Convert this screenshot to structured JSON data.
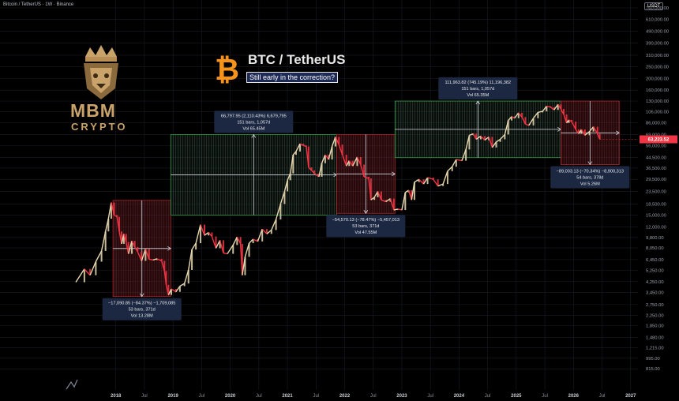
{
  "header": {
    "symbol_line": "Bitcoin / TetherUS · 1W · Binance",
    "currency_badge": "USDT"
  },
  "brand": {
    "logo_line1": "MBM",
    "logo_line2": "CRYPTO",
    "logo_accent": "#c9a36a",
    "btc_icon": "bitcoin-icon",
    "btc_orange": "#f7931a"
  },
  "chart_data": {
    "type": "line",
    "title": "BTC / TetherUS",
    "subtitle": "Still early in the correction?",
    "yscale": "log",
    "ylim": [
      615,
      760000
    ],
    "xlim": [
      2017.3,
      2027.1
    ],
    "y_ticks": [
      760000,
      610000,
      490000,
      390000,
      310000,
      250000,
      200000,
      160000,
      130000,
      106000,
      86000,
      69000,
      56000,
      44500,
      36500,
      29500,
      23500,
      18500,
      15000,
      12000,
      9800,
      8050,
      6450,
      5250,
      4250,
      3450,
      2750,
      2250,
      1850,
      1480,
      1215,
      995,
      815
    ],
    "y_tick_labels": [
      "760,000.00",
      "610,000.00",
      "490,000.00",
      "390,000.00",
      "310,000.00",
      "250,000.00",
      "200,000.00",
      "160,000.00",
      "130,000.00",
      "106,000.00",
      "86,000.00",
      "69,000.00",
      "56,000.00",
      "44,500.00",
      "36,500.00",
      "29,500.00",
      "23,500.00",
      "18,500.00",
      "15,000.00",
      "12,000.00",
      "9,800.00",
      "8,050.00",
      "6,450.00",
      "5,250.00",
      "4,250.00",
      "3,450.00",
      "2,750.00",
      "2,250.00",
      "1,850.00",
      "1,480.00",
      "1,215.00",
      "995.00",
      "815.00"
    ],
    "x_ticks": [
      {
        "x": 2018.0,
        "label": "2018",
        "bold": true
      },
      {
        "x": 2018.5,
        "label": "Jul",
        "bold": false
      },
      {
        "x": 2019.0,
        "label": "2019",
        "bold": true
      },
      {
        "x": 2019.5,
        "label": "Jul",
        "bold": false
      },
      {
        "x": 2020.0,
        "label": "2020",
        "bold": true
      },
      {
        "x": 2020.5,
        "label": "Jul",
        "bold": false
      },
      {
        "x": 2021.0,
        "label": "2021",
        "bold": true
      },
      {
        "x": 2021.5,
        "label": "Jul",
        "bold": false
      },
      {
        "x": 2022.0,
        "label": "2022",
        "bold": true
      },
      {
        "x": 2022.5,
        "label": "Jul",
        "bold": false
      },
      {
        "x": 2023.0,
        "label": "2023",
        "bold": true
      },
      {
        "x": 2023.5,
        "label": "Jul",
        "bold": false
      },
      {
        "x": 2024.0,
        "label": "2024",
        "bold": true
      },
      {
        "x": 2024.5,
        "label": "Jul",
        "bold": false
      },
      {
        "x": 2025.0,
        "label": "2025",
        "bold": true
      },
      {
        "x": 2025.5,
        "label": "Jul",
        "bold": false
      },
      {
        "x": 2026.0,
        "label": "2026",
        "bold": true
      },
      {
        "x": 2026.5,
        "label": "Jul",
        "bold": false
      },
      {
        "x": 2027.0,
        "label": "2027",
        "bold": true
      }
    ],
    "current_price": {
      "value": 63000,
      "label": "63,223.52",
      "color": "#f23645"
    },
    "series": [
      {
        "color": "#f23645",
        "points": [
          [
            2017.3,
            4200
          ],
          [
            2017.45,
            5400
          ],
          [
            2017.55,
            4800
          ],
          [
            2017.65,
            6200
          ],
          [
            2017.75,
            7600
          ],
          [
            2017.82,
            11000
          ],
          [
            2017.87,
            14000
          ],
          [
            2017.92,
            19000
          ],
          [
            2017.97,
            15000
          ],
          [
            2018.02,
            14500
          ],
          [
            2018.06,
            11000
          ],
          [
            2018.1,
            8700
          ],
          [
            2018.14,
            10500
          ],
          [
            2018.18,
            9000
          ],
          [
            2018.22,
            7200
          ],
          [
            2018.28,
            9200
          ],
          [
            2018.33,
            8200
          ],
          [
            2018.38,
            7500
          ],
          [
            2018.45,
            6300
          ],
          [
            2018.52,
            7900
          ],
          [
            2018.58,
            6500
          ],
          [
            2018.65,
            6400
          ],
          [
            2018.72,
            6550
          ],
          [
            2018.8,
            6300
          ],
          [
            2018.85,
            5200
          ],
          [
            2018.88,
            4000
          ],
          [
            2018.92,
            3300
          ],
          [
            2018.97,
            3700
          ],
          [
            2019.05,
            3500
          ],
          [
            2019.12,
            3900
          ],
          [
            2019.2,
            4100
          ],
          [
            2019.27,
            5300
          ],
          [
            2019.33,
            7800
          ],
          [
            2019.4,
            8800
          ],
          [
            2019.48,
            12500
          ],
          [
            2019.55,
            10200
          ],
          [
            2019.62,
            10800
          ],
          [
            2019.68,
            10000
          ],
          [
            2019.75,
            8000
          ],
          [
            2019.82,
            9300
          ],
          [
            2019.88,
            7300
          ],
          [
            2019.95,
            7200
          ],
          [
            2020.05,
            8500
          ],
          [
            2020.12,
            9900
          ],
          [
            2020.18,
            8700
          ],
          [
            2020.21,
            4800
          ],
          [
            2020.26,
            6800
          ],
          [
            2020.33,
            8800
          ],
          [
            2020.4,
            9500
          ],
          [
            2020.48,
            9100
          ],
          [
            2020.56,
            11500
          ],
          [
            2020.64,
            10500
          ],
          [
            2020.72,
            11300
          ],
          [
            2020.8,
            13800
          ],
          [
            2020.88,
            18500
          ],
          [
            2020.95,
            23500
          ],
          [
            2021.0,
            29000
          ],
          [
            2021.05,
            33000
          ],
          [
            2021.1,
            47000
          ],
          [
            2021.15,
            50000
          ],
          [
            2021.22,
            58000
          ],
          [
            2021.28,
            56000
          ],
          [
            2021.33,
            55000
          ],
          [
            2021.37,
            37000
          ],
          [
            2021.42,
            35000
          ],
          [
            2021.47,
            33000
          ],
          [
            2021.55,
            31000
          ],
          [
            2021.6,
            40000
          ],
          [
            2021.66,
            47000
          ],
          [
            2021.72,
            43000
          ],
          [
            2021.78,
            55000
          ],
          [
            2021.84,
            66000
          ],
          [
            2021.9,
            57000
          ],
          [
            2021.96,
            47000
          ],
          [
            2022.03,
            38000
          ],
          [
            2022.08,
            42000
          ],
          [
            2022.14,
            38000
          ],
          [
            2022.22,
            45000
          ],
          [
            2022.28,
            39000
          ],
          [
            2022.34,
            31000
          ],
          [
            2022.42,
            30000
          ],
          [
            2022.46,
            20000
          ],
          [
            2022.52,
            21000
          ],
          [
            2022.58,
            23500
          ],
          [
            2022.64,
            20000
          ],
          [
            2022.72,
            19300
          ],
          [
            2022.8,
            20500
          ],
          [
            2022.86,
            16500
          ],
          [
            2022.93,
            16800
          ],
          [
            2023.0,
            16500
          ],
          [
            2023.06,
            23000
          ],
          [
            2023.12,
            24000
          ],
          [
            2023.17,
            20000
          ],
          [
            2023.22,
            28000
          ],
          [
            2023.3,
            29500
          ],
          [
            2023.38,
            27000
          ],
          [
            2023.45,
            30500
          ],
          [
            2023.55,
            29500
          ],
          [
            2023.63,
            26000
          ],
          [
            2023.72,
            27000
          ],
          [
            2023.8,
            34500
          ],
          [
            2023.88,
            37500
          ],
          [
            2023.95,
            43000
          ],
          [
            2024.05,
            42000
          ],
          [
            2024.12,
            52000
          ],
          [
            2024.18,
            68000
          ],
          [
            2024.25,
            70000
          ],
          [
            2024.3,
            63000
          ],
          [
            2024.38,
            67000
          ],
          [
            2024.45,
            62000
          ],
          [
            2024.52,
            66000
          ],
          [
            2024.58,
            54000
          ],
          [
            2024.65,
            60000
          ],
          [
            2024.72,
            63000
          ],
          [
            2024.8,
            69000
          ],
          [
            2024.86,
            90000
          ],
          [
            2024.92,
            97000
          ],
          [
            2024.97,
            94000
          ],
          [
            2025.04,
            104000
          ],
          [
            2025.1,
            96000
          ],
          [
            2025.16,
            84000
          ],
          [
            2025.22,
            82000
          ],
          [
            2025.3,
            94000
          ],
          [
            2025.38,
            105000
          ],
          [
            2025.46,
            107000
          ],
          [
            2025.53,
            118000
          ],
          [
            2025.6,
            116000
          ],
          [
            2025.66,
            110000
          ],
          [
            2025.73,
            122000
          ],
          [
            2025.78,
            112000
          ],
          [
            2025.83,
            101000
          ],
          [
            2025.88,
            86000
          ],
          [
            2025.92,
            91000
          ],
          [
            2025.97,
            88000
          ],
          [
            2026.04,
            76000
          ],
          [
            2026.09,
            70000
          ],
          [
            2026.14,
            76000
          ],
          [
            2026.2,
            68000
          ],
          [
            2026.28,
            73000
          ],
          [
            2026.35,
            80000
          ],
          [
            2026.42,
            70000
          ],
          [
            2026.46,
            63000
          ]
        ]
      }
    ],
    "measurements": [
      {
        "id": "m1",
        "kind": "down",
        "x0": 2017.95,
        "x1": 2018.96,
        "y0": 19800,
        "y1": 3200,
        "label_lines": [
          "−17,090.85 (−84.37%) −1,709,085",
          "53 bars, 371d",
          "Vol 13.28M"
        ],
        "label_side": "below"
      },
      {
        "id": "m2",
        "kind": "up",
        "x0": 2018.96,
        "x1": 2021.86,
        "y0": 15000,
        "y1": 69000,
        "label_lines": [
          "66,797.95 (2,110.43%) 6,679,795",
          "151 bars, 1,057d",
          "Vol 65.45M"
        ],
        "label_side": "above"
      },
      {
        "id": "m3",
        "kind": "down",
        "x0": 2021.86,
        "x1": 2022.88,
        "y0": 69000,
        "y1": 15500,
        "label_lines": [
          "−54,570.13 (−78.47%) −5,457,013",
          "53 bars, 371d",
          "Vol 47.55M"
        ],
        "label_side": "below"
      },
      {
        "id": "m4",
        "kind": "up",
        "x0": 2022.88,
        "x1": 2025.78,
        "y0": 44500,
        "y1": 130000,
        "label_lines": [
          "111,963.82 (745.19%) 11,196,382",
          "151 bars, 1,057d",
          "Vol 65.35M"
        ],
        "label_side": "above"
      },
      {
        "id": "m5",
        "kind": "down",
        "x0": 2025.78,
        "x1": 2026.8,
        "y0": 130000,
        "y1": 39000,
        "label_lines": [
          "−89,003.13 (−70.34%) −8,900,313",
          "54 bars, 378d",
          "Vol 5.26M"
        ],
        "label_side": "below"
      }
    ],
    "colors": {
      "up_box": "#2ea043",
      "down_box": "#b2222a",
      "grid": "#1a1d24",
      "label_bg": "#1e2a44",
      "arrow": "#d0d4dc"
    }
  }
}
